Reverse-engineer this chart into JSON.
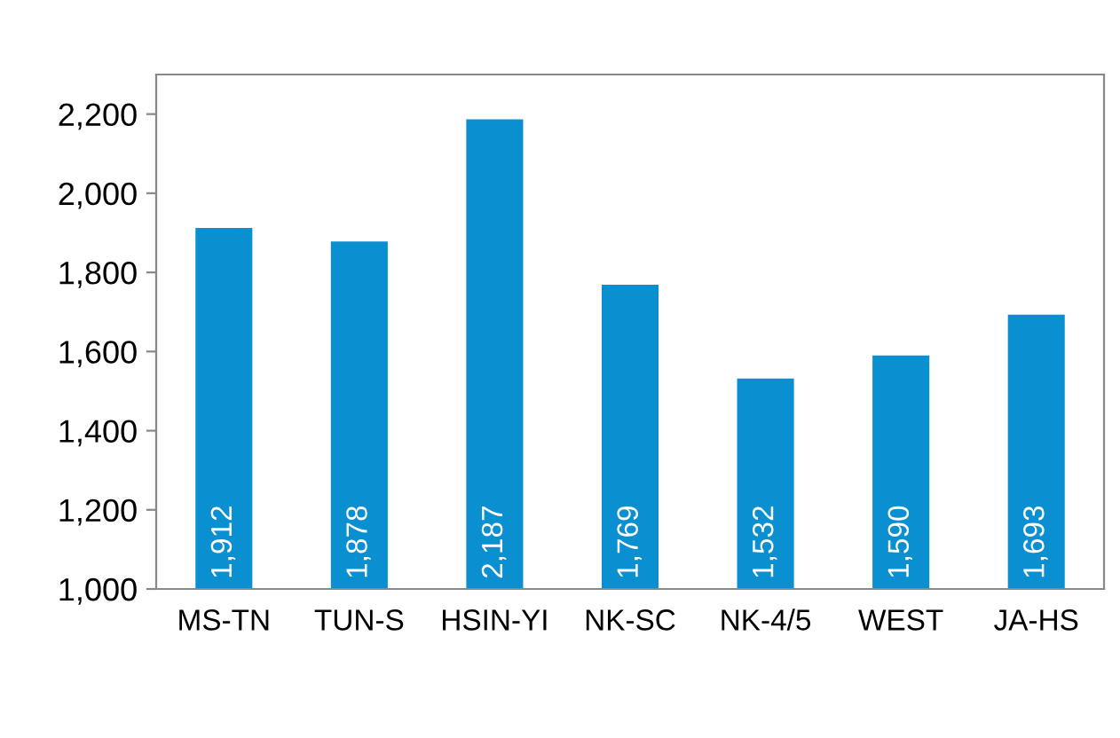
{
  "chart_data": {
    "type": "bar",
    "categories": [
      "MS-TN",
      "TUN-S",
      "HSIN-YI",
      "NK-SC",
      "NK-4/5",
      "WEST",
      "JA-HS"
    ],
    "values": [
      1912,
      1878,
      2187,
      1769,
      1532,
      1590,
      1693
    ],
    "value_labels": [
      "1,912",
      "1,878",
      "2,187",
      "1,769",
      "1,532",
      "1,590",
      "1,693"
    ],
    "color": "#0a8fd1",
    "ylim": [
      1000,
      2300
    ],
    "yticks": [
      {
        "value": 1000,
        "label": "1,000"
      },
      {
        "value": 1200,
        "label": "1,200"
      },
      {
        "value": 1400,
        "label": "1,400"
      },
      {
        "value": 1600,
        "label": "1,600"
      },
      {
        "value": 1800,
        "label": "1,800"
      },
      {
        "value": 2000,
        "label": "2,000"
      },
      {
        "value": 2200,
        "label": "2,200"
      }
    ],
    "grid": false
  }
}
